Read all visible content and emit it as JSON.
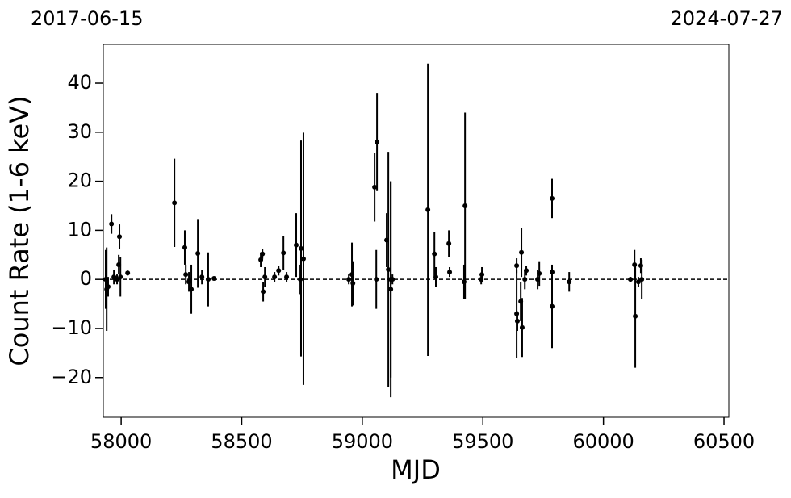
{
  "chart_data": {
    "type": "errorbar",
    "top_labels": [
      "2017-06-15",
      "2024-07-27"
    ],
    "x_label": "MJD",
    "y_label": "Count Rate (1-6 keV)",
    "xlim": [
      57926,
      60520
    ],
    "ylim": [
      -28.1,
      47.9
    ],
    "xticks": [
      58000,
      58500,
      59000,
      59500,
      60000,
      60500
    ],
    "yticks": [
      {
        "value": -20,
        "label": "−20"
      },
      {
        "value": -10,
        "label": "−10"
      },
      0,
      10,
      20,
      30,
      40
    ],
    "hline": 0,
    "color": "#000000",
    "x": [
      57936,
      57940,
      57946,
      57960,
      57970,
      57983,
      57990,
      57993,
      57997,
      58027,
      58221,
      58264,
      58268,
      58281,
      58291,
      58318,
      58335,
      58361,
      58385,
      58579,
      58586,
      58589,
      58596,
      58636,
      58653,
      58673,
      58686,
      58726,
      58743,
      58746,
      58756,
      58944,
      58957,
      58961,
      59051,
      59058,
      59061,
      59101,
      59108,
      59118,
      59118,
      59125,
      59272,
      59299,
      59305,
      59359,
      59362,
      59422,
      59426,
      59493,
      59496,
      59640,
      59640,
      59643,
      59657,
      59660,
      59663,
      59674,
      59680,
      59727,
      59734,
      59787,
      59787,
      59787,
      59858,
      60112,
      60129,
      60132,
      60145,
      60155,
      60159
    ],
    "values": [
      0,
      -2,
      -1.5,
      11.3,
      0.5,
      0,
      3,
      8.7,
      0.5,
      1.3,
      15.6,
      6.5,
      1,
      -0.5,
      -2,
      5.3,
      0.5,
      0,
      0.2,
      4,
      5.2,
      -2.5,
      0.5,
      0.5,
      1.8,
      5.4,
      0.5,
      7,
      0,
      6.3,
      4.2,
      0,
      1,
      -0.8,
      18.8,
      0,
      28,
      8,
      2,
      0,
      -2,
      0,
      14.2,
      5.2,
      0.5,
      7.3,
      1.5,
      -0.5,
      15,
      0,
      1,
      2.8,
      -7,
      -8.5,
      -4.5,
      5.5,
      -9.8,
      0,
      1.8,
      0,
      1.2,
      16.5,
      -5.5,
      1.5,
      -0.5,
      0,
      3,
      -7.5,
      -0.5,
      2.8,
      0
    ],
    "errors": [
      6,
      8.5,
      2,
      2,
      1.5,
      1,
      2,
      2.5,
      4,
      0.5,
      9,
      3.5,
      2,
      2,
      5,
      7,
      1.5,
      5.5,
      0.3,
      1.5,
      1,
      2,
      2,
      1,
      1,
      3.5,
      1,
      6.5,
      3,
      22,
      25.7,
      1,
      6.5,
      4.5,
      7,
      6,
      10,
      5.5,
      24,
      20,
      22,
      1,
      29.8,
      4.5,
      2,
      2.7,
      1,
      3.5,
      19,
      1,
      1.5,
      1.5,
      9,
      2,
      4,
      5,
      6,
      2,
      1,
      2,
      2.5,
      4,
      8.5,
      1.5,
      2,
      0.5,
      3,
      10.5,
      1,
      1.5,
      4
    ]
  }
}
